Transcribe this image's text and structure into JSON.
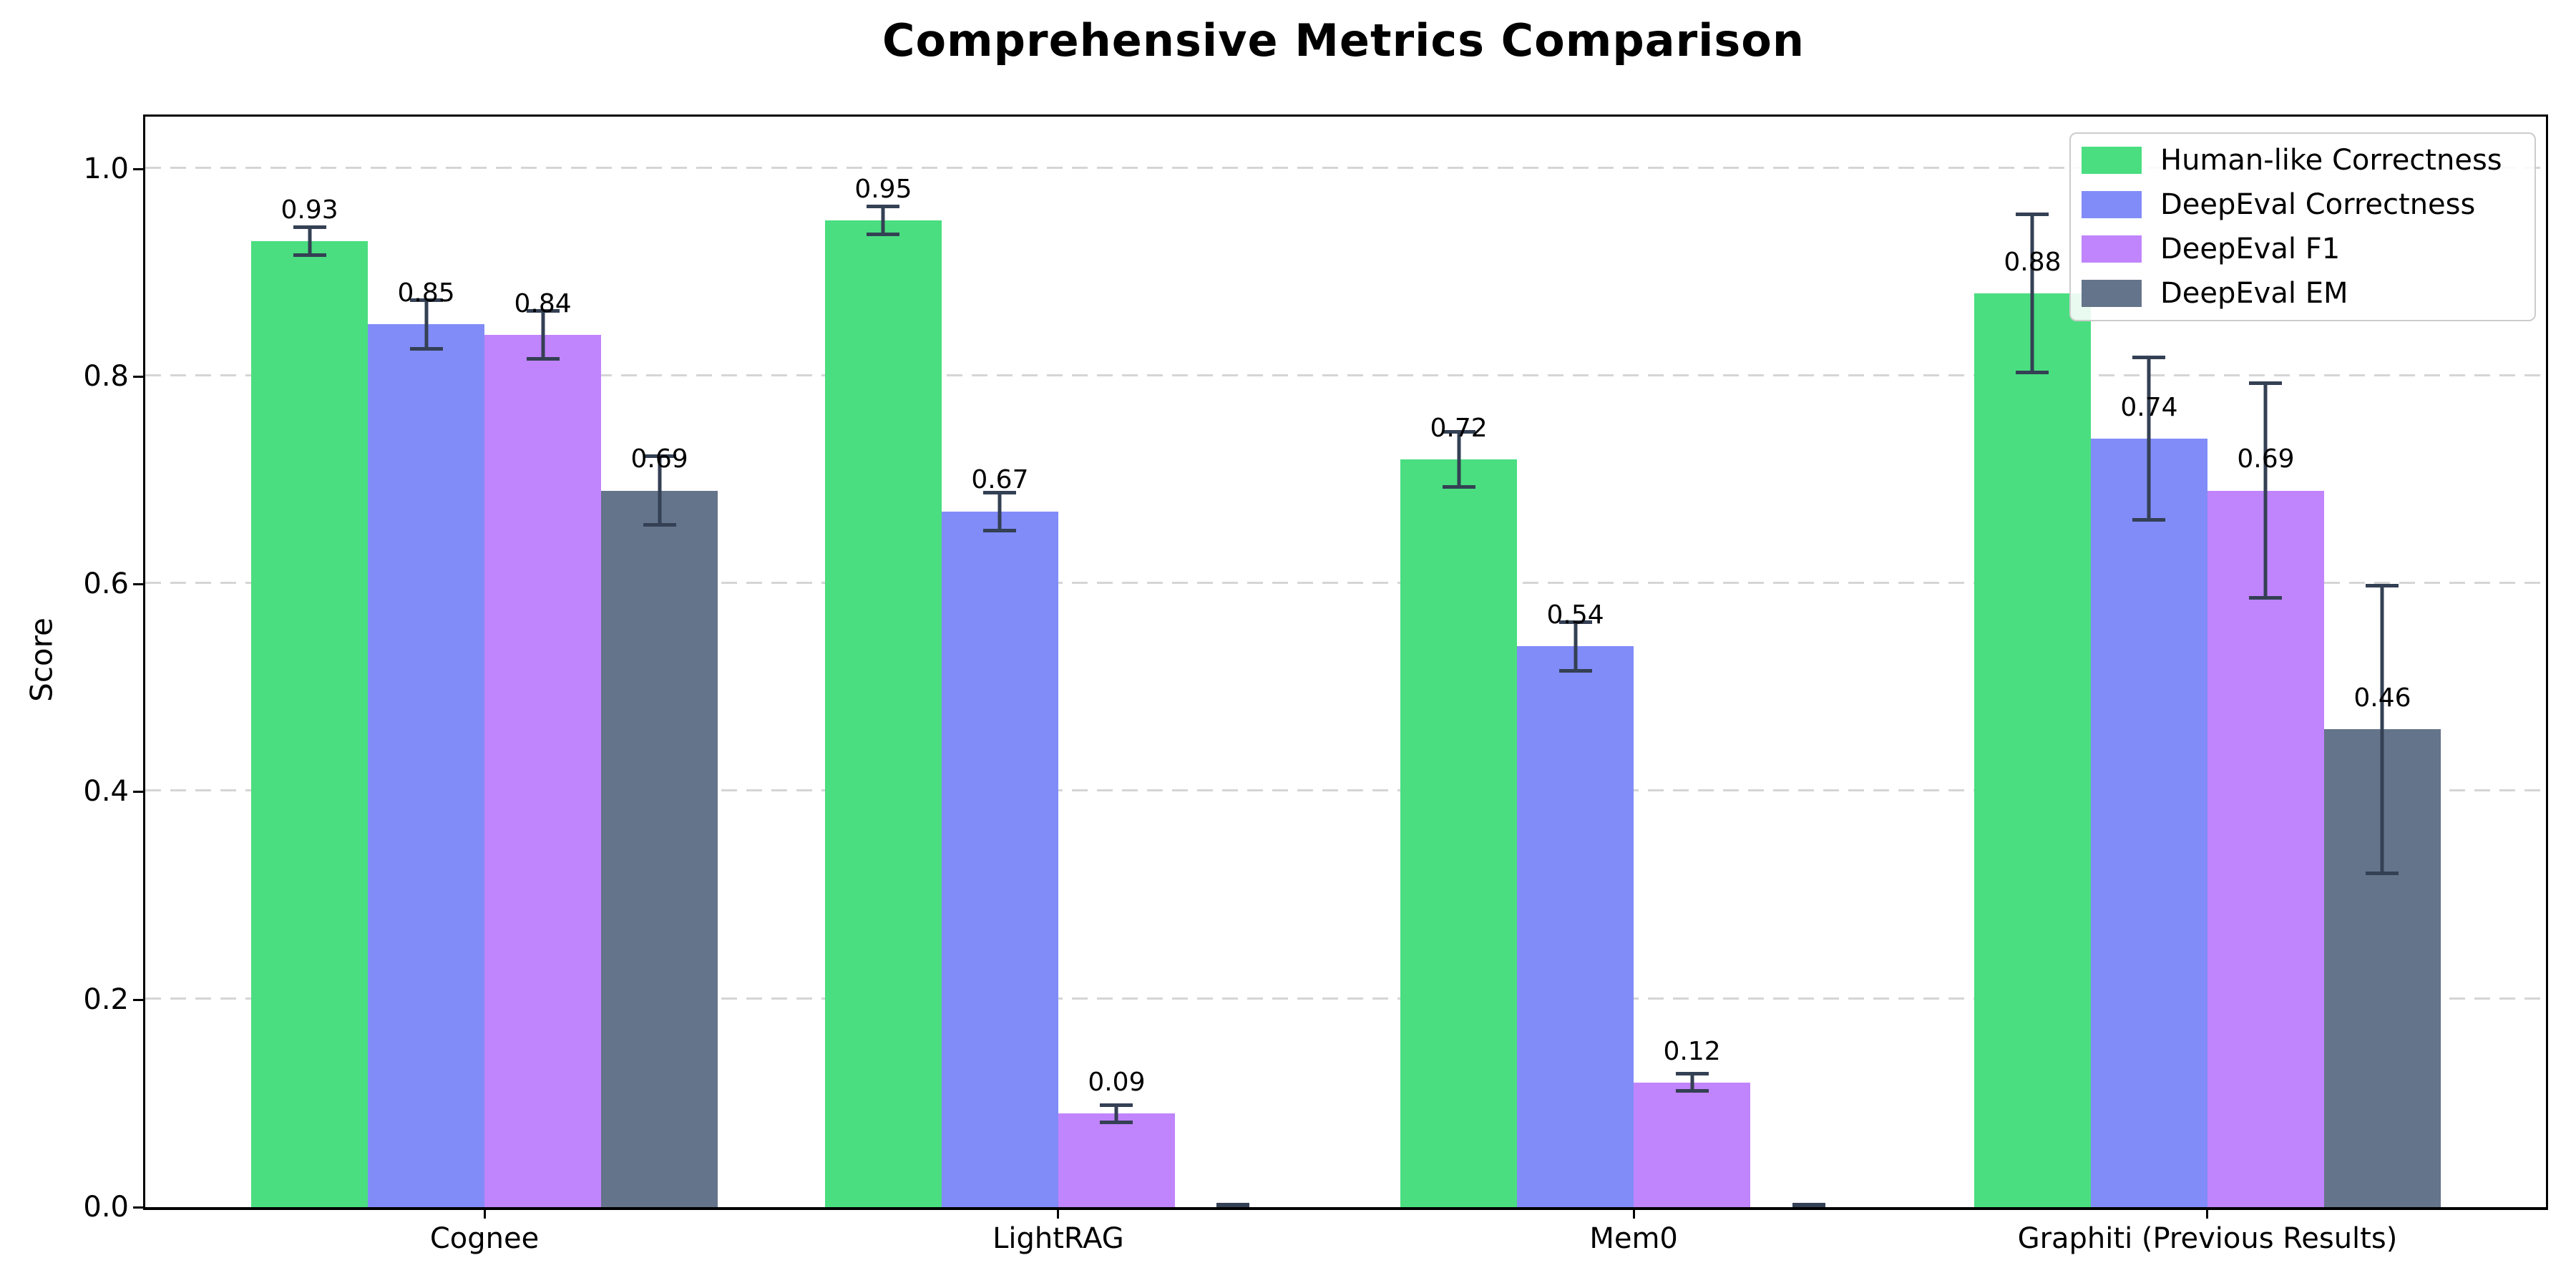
{
  "chart_data": {
    "type": "bar",
    "title": "Comprehensive Metrics Comparison",
    "xlabel": "",
    "ylabel": "Score",
    "ylim": [
      0,
      1.05
    ],
    "grid": {
      "axis": "y",
      "style": "dashed",
      "color": "#d5d5d5"
    },
    "legend_position": "upper right",
    "error_bar_color": "#344054",
    "yticks": {
      "values": [
        0.0,
        0.2,
        0.4,
        0.6,
        0.8,
        1.0
      ],
      "labels": [
        "0.0",
        "0.2",
        "0.4",
        "0.6",
        "0.8",
        "1.0"
      ]
    },
    "categories": [
      "Cognee",
      "LightRAG",
      "Mem0",
      "Graphiti (Previous Results)"
    ],
    "series": [
      {
        "name": "Human-like Correctness",
        "color": "#4ade80",
        "values": [
          0.93,
          0.95,
          0.72,
          0.88
        ],
        "errors": [
          0.015,
          0.015,
          0.028,
          0.078
        ],
        "value_labels": [
          "0.93",
          "0.95",
          "0.72",
          "0.88"
        ]
      },
      {
        "name": "DeepEval Correctness",
        "color": "#818cf8",
        "values": [
          0.85,
          0.67,
          0.54,
          0.74
        ],
        "errors": [
          0.025,
          0.02,
          0.025,
          0.08
        ],
        "value_labels": [
          "0.85",
          "0.67",
          "0.54",
          "0.74"
        ]
      },
      {
        "name": "DeepEval F1",
        "color": "#c084fc",
        "values": [
          0.84,
          0.09,
          0.12,
          0.69
        ],
        "errors": [
          0.025,
          0.01,
          0.01,
          0.105
        ],
        "value_labels": [
          "0.84",
          "0.09",
          "0.12",
          "0.69"
        ]
      },
      {
        "name": "DeepEval EM",
        "color": "#64748b",
        "values": [
          0.69,
          0.0,
          0.0,
          0.46
        ],
        "errors": [
          0.035,
          0.004,
          0.004,
          0.14
        ],
        "value_labels": [
          "0.69",
          null,
          null,
          "0.46"
        ]
      }
    ]
  }
}
